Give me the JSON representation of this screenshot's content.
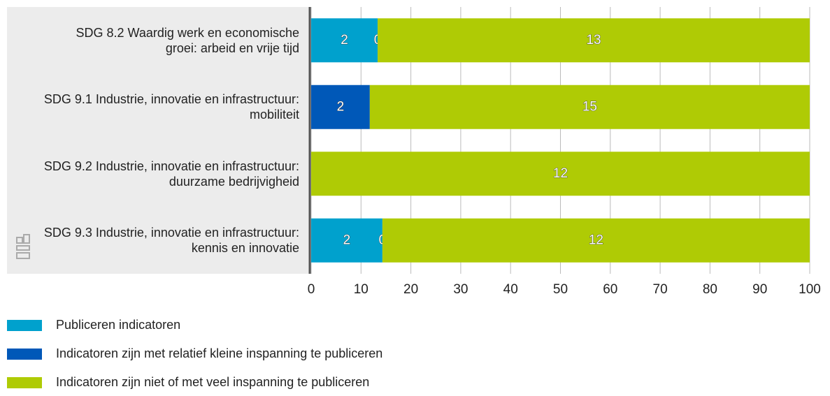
{
  "chart_data": {
    "type": "stacked_barh",
    "categories": [
      "SDG 8.2 Waardig werk en economische groei: arbeid en vrije tijd",
      "SDG 9.1 Industrie, innovatie en infrastructuur: mobiliteit",
      "SDG 9.2 Industrie, innovatie en infrastructuur: duurzame bedrijvigheid",
      "SDG 9.3 Industrie, innovatie en infrastructuur: kennis en innovatie"
    ],
    "series": [
      {
        "name": "Publiceren indicatoren",
        "color": "#00a1cd",
        "values": [
          13.33,
          0,
          0,
          14.29
        ],
        "counts": [
          2,
          0,
          0,
          2
        ]
      },
      {
        "name": "Indicatoren zijn met relatief kleine inspanning te publiceren",
        "color": "#0058b8",
        "values": [
          0,
          11.76,
          0,
          0
        ],
        "counts": [
          0,
          2,
          0,
          0
        ]
      },
      {
        "name": "Indicatoren zijn niet of met veel inspanning te publiceren",
        "color": "#afcb05",
        "values": [
          86.67,
          88.24,
          100,
          85.71
        ],
        "counts": [
          13,
          15,
          12,
          12
        ]
      }
    ],
    "xlim": [
      0,
      100
    ],
    "xticks": [
      0,
      10,
      20,
      30,
      40,
      50,
      60,
      70,
      80,
      90,
      100
    ],
    "grid": true
  }
}
